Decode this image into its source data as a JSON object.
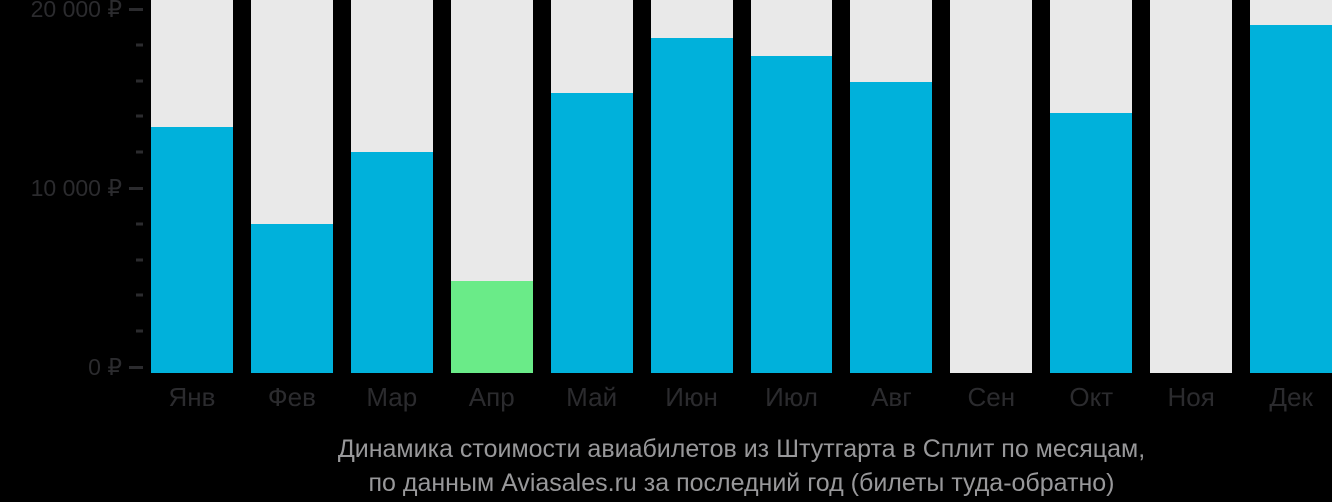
{
  "chart_data": {
    "type": "bar",
    "title": "Динамика стоимости авиабилетов из Штутгарта в Сплит по месяцам,",
    "subtitle": "по данным Aviasales.ru за последний год (билеты туда-обратно)",
    "currency": "₽",
    "categories": [
      "Янв",
      "Фев",
      "Мар",
      "Апр",
      "Май",
      "Июн",
      "Июл",
      "Авг",
      "Сен",
      "Окт",
      "Ноя",
      "Дек"
    ],
    "values": [
      13400,
      8000,
      12000,
      4800,
      15300,
      18400,
      17400,
      15900,
      null,
      14200,
      null,
      19100
    ],
    "highlighted_index": 3,
    "ylim": [
      0,
      20500
    ],
    "yticks": [
      {
        "value": 20000,
        "label": "20 000 ₽"
      },
      {
        "value": 10000,
        "label": "10 000 ₽"
      },
      {
        "value": 0,
        "label": "0 ₽"
      }
    ],
    "minor_tick_step": 2000,
    "grid": "off",
    "legend": "none"
  },
  "colors": {
    "background": "#000000",
    "column_track": "#E9E9E9",
    "bar": "#00B1DB",
    "bar_highlight": "#6AEB88",
    "axis_text": "#2B2B2E",
    "tick": "#2B2B2E",
    "title_text": "#98989A"
  }
}
